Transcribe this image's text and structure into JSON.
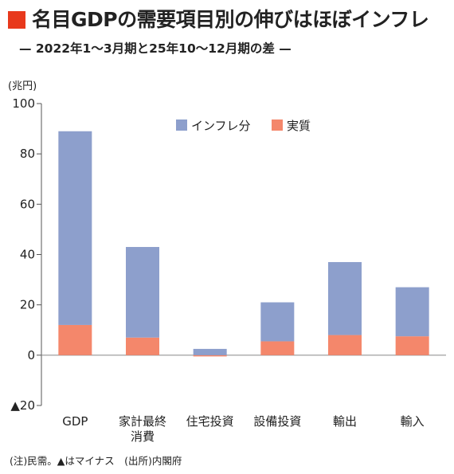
{
  "header": {
    "title": "名目GDPの需要項目別の伸びはほぼインフレ",
    "subtitle": "— 2022年1～3月期と25年10～12月期の差 —"
  },
  "chart_data": {
    "type": "bar",
    "stacked": true,
    "unit_label": "(兆円)",
    "categories": [
      [
        "GDP"
      ],
      [
        "家計最終",
        "消費"
      ],
      [
        "住宅投資"
      ],
      [
        "設備投資"
      ],
      [
        "輸出"
      ],
      [
        "輸入"
      ]
    ],
    "series": [
      {
        "name": "実質",
        "color": "#f4876b",
        "values": [
          12,
          7,
          -0.5,
          5.5,
          8,
          7.5
        ]
      },
      {
        "name": "インフレ分",
        "color": "#8d9fcc",
        "values": [
          77,
          36,
          2.5,
          15.5,
          29,
          19.5
        ]
      }
    ],
    "legend_order": [
      "インフレ分",
      "実質"
    ],
    "legend_position": "top-right",
    "yticks": [
      100,
      80,
      60,
      40,
      20,
      0,
      -20
    ],
    "ytick_labels": [
      "100",
      "80",
      "60",
      "40",
      "20",
      "0",
      "▲20"
    ],
    "ylim": [
      -20,
      100
    ],
    "grid": false
  },
  "footnote": "(注)民需。▲はマイナス　(出所)内閣府"
}
